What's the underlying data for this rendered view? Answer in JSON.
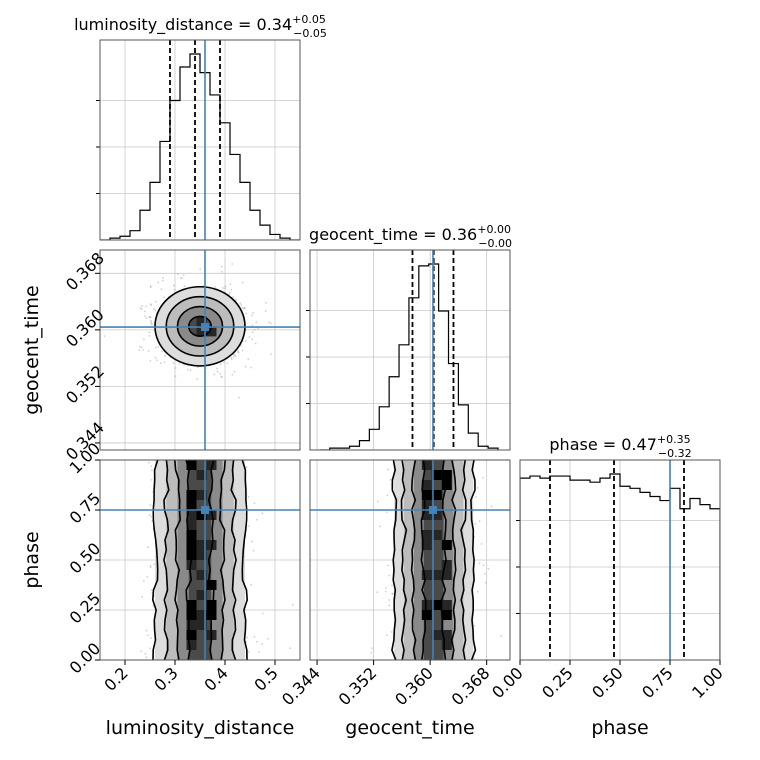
{
  "chart_data": {
    "type": "corner",
    "parameters": [
      "luminosity_distance",
      "geocent_time",
      "phase"
    ],
    "truths": {
      "luminosity_distance": 0.36,
      "geocent_time": 0.3604,
      "phase": 0.75
    },
    "titles": [
      {
        "param": "luminosity_distance",
        "prefix": "luminosity_distance = 0.34",
        "plus": "+0.05",
        "minus": "−0.05"
      },
      {
        "param": "geocent_time",
        "prefix": "geocent_time = 0.36",
        "plus": "+0.00",
        "minus": "−0.00"
      },
      {
        "param": "phase",
        "prefix": "phase = 0.47",
        "plus": "+0.35",
        "minus": "−0.32"
      }
    ],
    "axes": {
      "luminosity_distance": {
        "range": [
          0.15,
          0.55
        ],
        "ticks": [
          0.2,
          0.3,
          0.4,
          0.5
        ],
        "tick_labels": [
          "0.2",
          "0.3",
          "0.4",
          "0.5"
        ],
        "label": "luminosity_distance"
      },
      "geocent_time": {
        "range": [
          0.343,
          0.3713
        ],
        "ticks": [
          0.344,
          0.352,
          0.36,
          0.368
        ],
        "tick_labels": [
          "0.344",
          "0.352",
          "0.360",
          "0.368"
        ],
        "label": "geocent_time"
      },
      "phase": {
        "range": [
          0.0,
          1.0
        ],
        "ticks": [
          0.0,
          0.25,
          0.5,
          0.75,
          1.0
        ],
        "tick_labels": [
          "0.00",
          "0.25",
          "0.50",
          "0.75",
          "1.00"
        ],
        "label": "phase"
      }
    },
    "histograms": {
      "luminosity_distance": {
        "edges": [
          0.15,
          0.17,
          0.19,
          0.21,
          0.23,
          0.25,
          0.27,
          0.29,
          0.31,
          0.33,
          0.35,
          0.37,
          0.39,
          0.41,
          0.43,
          0.45,
          0.47,
          0.49,
          0.51,
          0.53,
          0.55
        ],
        "counts": [
          0,
          0.01,
          0.02,
          0.05,
          0.16,
          0.31,
          0.53,
          0.75,
          0.93,
          1.0,
          0.9,
          0.78,
          0.63,
          0.46,
          0.31,
          0.16,
          0.08,
          0.03,
          0.01,
          0
        ],
        "quantiles": [
          0.29,
          0.34,
          0.39
        ]
      },
      "geocent_time": {
        "edges": [
          0.3444,
          0.3458,
          0.3472,
          0.3486,
          0.35,
          0.3514,
          0.3528,
          0.3542,
          0.3556,
          0.357,
          0.3584,
          0.3598,
          0.3612,
          0.3626,
          0.364,
          0.3654,
          0.3668,
          0.3682,
          0.3696
        ],
        "counts": [
          0.0,
          0.01,
          0.01,
          0.02,
          0.05,
          0.11,
          0.23,
          0.39,
          0.56,
          0.81,
          0.98,
          0.99,
          0.74,
          0.46,
          0.24,
          0.09,
          0.02,
          0.01
        ],
        "quantiles": [
          0.3575,
          0.3605,
          0.3633
        ]
      },
      "phase": {
        "edges": [
          0.0,
          0.05,
          0.1,
          0.15,
          0.2,
          0.25,
          0.3,
          0.35,
          0.4,
          0.45,
          0.5,
          0.55,
          0.6,
          0.65,
          0.7,
          0.75,
          0.8,
          0.85,
          0.9,
          0.95,
          1.0
        ],
        "counts": [
          0.89,
          0.9,
          0.89,
          0.9,
          0.9,
          0.88,
          0.88,
          0.87,
          0.89,
          0.91,
          0.85,
          0.84,
          0.82,
          0.8,
          0.78,
          0.84,
          0.74,
          0.79,
          0.76,
          0.74
        ],
        "quantiles": [
          0.15,
          0.47,
          0.82
        ]
      }
    },
    "density_2d": [
      {
        "x": "luminosity_distance",
        "y": "geocent_time",
        "center": [
          0.35,
          0.3605
        ],
        "spread": [
          0.045,
          0.0028
        ]
      },
      {
        "x": "luminosity_distance",
        "y": "phase",
        "center": [
          0.35,
          0.5
        ],
        "spread": [
          0.045,
          0.9
        ]
      },
      {
        "x": "geocent_time",
        "y": "phase",
        "center": [
          0.3605,
          0.5
        ],
        "spread": [
          0.0028,
          0.9
        ]
      }
    ],
    "colors": {
      "truth": "#4682b4",
      "hist": "#000000",
      "grid": "#c8c8c8"
    },
    "grid": true
  }
}
